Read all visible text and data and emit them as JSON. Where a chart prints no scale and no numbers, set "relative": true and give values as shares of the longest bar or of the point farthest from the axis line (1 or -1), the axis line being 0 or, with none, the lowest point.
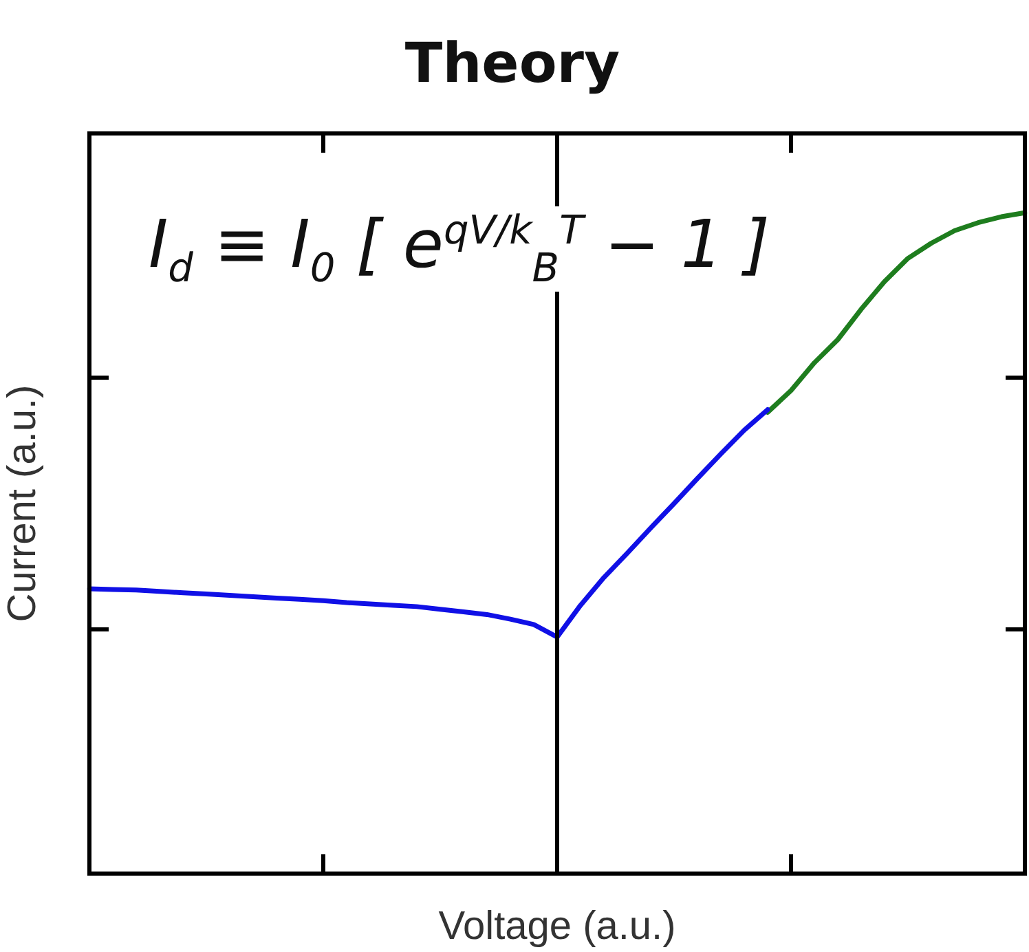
{
  "chart_data": {
    "type": "line",
    "title": "Theory",
    "xlabel": "Voltage (a.u.)",
    "ylabel": "Current (a.u.)",
    "relative": true,
    "legend": false,
    "marker": "none",
    "line_style": "solid",
    "annotations": [
      "I$_{d}$ ≡ I$_{0}$ [ e$^{qV/k}$$_{B}$$^{T}$ − 1 ]"
    ],
    "categories": [
      null,
      null,
      null,
      null,
      null,
      null,
      null,
      null,
      null,
      null,
      null,
      null,
      null,
      null,
      null,
      null,
      null,
      null,
      null,
      null,
      null,
      null,
      null,
      null,
      null,
      null,
      null,
      null,
      null,
      null,
      null,
      null,
      null,
      null,
      null,
      null,
      null,
      null,
      null,
      null,
      null
    ],
    "series": [
      {
        "color": "#1010e6",
        "values": [
          0.431,
          0.43,
          0.429,
          0.427,
          0.425,
          0.423,
          0.421,
          0.419,
          0.417,
          0.415,
          0.413,
          0.41,
          0.408,
          0.406,
          0.404,
          0.4,
          0.396,
          0.392,
          0.385,
          0.377,
          0.358,
          0.406,
          0.448,
          0.485,
          0.523,
          0.56,
          0.598,
          0.635,
          0.671,
          0.702,
          null,
          null,
          null,
          null,
          null,
          null,
          null,
          null,
          null,
          null,
          null
        ]
      },
      {
        "color": "#1e7d1e",
        "values": [
          null,
          null,
          null,
          null,
          null,
          null,
          null,
          null,
          null,
          null,
          null,
          null,
          null,
          null,
          null,
          null,
          null,
          null,
          null,
          null,
          null,
          null,
          null,
          null,
          null,
          null,
          null,
          null,
          null,
          0.698,
          0.731,
          0.773,
          0.808,
          0.854,
          0.896,
          0.931,
          0.954,
          0.973,
          0.985,
          0.994,
          1
        ]
      }
    ]
  }
}
